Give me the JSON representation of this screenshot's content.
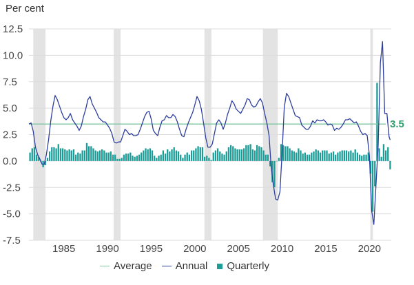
{
  "chart_data": {
    "type": "bar+line",
    "unit_label": "Per cent",
    "ylim": [
      -7.5,
      12.5
    ],
    "y_ticks": [
      "12.5",
      "10.0",
      "7.5",
      "5.0",
      "2.5",
      "0.0",
      "-2.5",
      "-5.0",
      "-7.5"
    ],
    "x_range": [
      1981.0,
      2022.5
    ],
    "x_ticks": [
      "1985",
      "1990",
      "1995",
      "2000",
      "2005",
      "2010",
      "2015",
      "2020"
    ],
    "grid": true,
    "recession_periods": [
      [
        1981.5,
        1982.9
      ],
      [
        1990.7,
        1991.5
      ],
      [
        2001.1,
        2001.9
      ],
      [
        2007.8,
        2009.5
      ],
      [
        2020.1,
        2020.4
      ]
    ],
    "average": {
      "name": "Average",
      "value": 3.5,
      "label": "3.5",
      "color": "#2e9f6b"
    },
    "annual": {
      "name": "Annual",
      "color": "#2d3e9e",
      "points": [
        [
          1981.0,
          3.5
        ],
        [
          1981.25,
          3.6
        ],
        [
          1981.5,
          2.8
        ],
        [
          1981.75,
          1.3
        ],
        [
          1982.0,
          0.6
        ],
        [
          1982.25,
          0.2
        ],
        [
          1982.5,
          -0.3
        ],
        [
          1982.75,
          -0.3
        ],
        [
          1983.0,
          0.6
        ],
        [
          1983.25,
          2.0
        ],
        [
          1983.5,
          3.8
        ],
        [
          1983.75,
          5.2
        ],
        [
          1984.0,
          6.2
        ],
        [
          1984.25,
          5.8
        ],
        [
          1984.5,
          5.2
        ],
        [
          1984.75,
          4.6
        ],
        [
          1985.0,
          4.1
        ],
        [
          1985.25,
          3.9
        ],
        [
          1985.5,
          4.1
        ],
        [
          1985.75,
          4.5
        ],
        [
          1986.0,
          3.9
        ],
        [
          1986.25,
          3.6
        ],
        [
          1986.5,
          3.3
        ],
        [
          1986.75,
          2.9
        ],
        [
          1987.0,
          3.3
        ],
        [
          1987.25,
          4.2
        ],
        [
          1987.5,
          4.9
        ],
        [
          1987.75,
          5.8
        ],
        [
          1988.0,
          6.1
        ],
        [
          1988.25,
          5.4
        ],
        [
          1988.5,
          5.0
        ],
        [
          1988.75,
          4.6
        ],
        [
          1989.0,
          4.1
        ],
        [
          1989.25,
          3.9
        ],
        [
          1989.5,
          3.7
        ],
        [
          1989.75,
          3.7
        ],
        [
          1990.0,
          3.4
        ],
        [
          1990.25,
          3.1
        ],
        [
          1990.5,
          2.6
        ],
        [
          1990.75,
          1.8
        ],
        [
          1991.0,
          1.7
        ],
        [
          1991.25,
          1.8
        ],
        [
          1991.5,
          1.8
        ],
        [
          1991.75,
          2.4
        ],
        [
          1992.0,
          3.0
        ],
        [
          1992.25,
          2.8
        ],
        [
          1992.5,
          2.5
        ],
        [
          1992.75,
          2.6
        ],
        [
          1993.0,
          2.4
        ],
        [
          1993.25,
          2.4
        ],
        [
          1993.5,
          2.5
        ],
        [
          1993.75,
          3.0
        ],
        [
          1994.0,
          3.6
        ],
        [
          1994.25,
          4.2
        ],
        [
          1994.5,
          4.6
        ],
        [
          1994.75,
          4.7
        ],
        [
          1995.0,
          4.0
        ],
        [
          1995.25,
          2.9
        ],
        [
          1995.5,
          2.6
        ],
        [
          1995.75,
          2.4
        ],
        [
          1996.0,
          3.2
        ],
        [
          1996.25,
          3.8
        ],
        [
          1996.5,
          3.9
        ],
        [
          1996.75,
          4.3
        ],
        [
          1997.0,
          4.1
        ],
        [
          1997.25,
          4.1
        ],
        [
          1997.5,
          4.4
        ],
        [
          1997.75,
          4.2
        ],
        [
          1998.0,
          3.7
        ],
        [
          1998.25,
          3.0
        ],
        [
          1998.5,
          2.4
        ],
        [
          1998.75,
          2.3
        ],
        [
          1999.0,
          3.0
        ],
        [
          1999.25,
          3.6
        ],
        [
          1999.5,
          4.1
        ],
        [
          1999.75,
          4.6
        ],
        [
          2000.0,
          5.3
        ],
        [
          2000.25,
          6.1
        ],
        [
          2000.5,
          5.7
        ],
        [
          2000.75,
          4.9
        ],
        [
          2001.0,
          3.6
        ],
        [
          2001.25,
          2.2
        ],
        [
          2001.5,
          1.3
        ],
        [
          2001.75,
          1.3
        ],
        [
          2002.0,
          1.6
        ],
        [
          2002.25,
          2.6
        ],
        [
          2002.5,
          3.6
        ],
        [
          2002.75,
          3.9
        ],
        [
          2003.0,
          3.6
        ],
        [
          2003.25,
          3.0
        ],
        [
          2003.5,
          3.6
        ],
        [
          2003.75,
          4.4
        ],
        [
          2004.0,
          5.0
        ],
        [
          2004.25,
          5.7
        ],
        [
          2004.5,
          5.4
        ],
        [
          2004.75,
          4.9
        ],
        [
          2005.0,
          4.7
        ],
        [
          2005.25,
          4.5
        ],
        [
          2005.5,
          4.9
        ],
        [
          2005.75,
          5.3
        ],
        [
          2006.0,
          5.9
        ],
        [
          2006.25,
          5.8
        ],
        [
          2006.5,
          5.3
        ],
        [
          2006.75,
          5.1
        ],
        [
          2007.0,
          5.2
        ],
        [
          2007.25,
          5.6
        ],
        [
          2007.5,
          5.9
        ],
        [
          2007.75,
          5.5
        ],
        [
          2008.0,
          4.5
        ],
        [
          2008.25,
          3.6
        ],
        [
          2008.5,
          2.4
        ],
        [
          2008.75,
          -0.6
        ],
        [
          2009.0,
          -2.3
        ],
        [
          2009.25,
          -3.6
        ],
        [
          2009.5,
          -3.7
        ],
        [
          2009.75,
          -2.9
        ],
        [
          2010.0,
          0.9
        ],
        [
          2010.25,
          5.1
        ],
        [
          2010.5,
          6.4
        ],
        [
          2010.75,
          6.1
        ],
        [
          2011.0,
          5.5
        ],
        [
          2011.25,
          4.9
        ],
        [
          2011.5,
          4.3
        ],
        [
          2011.75,
          4.2
        ],
        [
          2012.0,
          4.1
        ],
        [
          2012.25,
          3.4
        ],
        [
          2012.5,
          3.2
        ],
        [
          2012.75,
          3.0
        ],
        [
          2013.0,
          3.0
        ],
        [
          2013.25,
          3.3
        ],
        [
          2013.5,
          3.8
        ],
        [
          2013.75,
          3.6
        ],
        [
          2014.0,
          3.9
        ],
        [
          2014.25,
          3.8
        ],
        [
          2014.5,
          3.8
        ],
        [
          2014.75,
          3.9
        ],
        [
          2015.0,
          3.7
        ],
        [
          2015.25,
          3.4
        ],
        [
          2015.5,
          3.5
        ],
        [
          2015.75,
          3.4
        ],
        [
          2016.0,
          2.9
        ],
        [
          2016.25,
          3.1
        ],
        [
          2016.5,
          3.0
        ],
        [
          2016.75,
          3.2
        ],
        [
          2017.0,
          3.5
        ],
        [
          2017.25,
          3.9
        ],
        [
          2017.5,
          3.9
        ],
        [
          2017.75,
          4.0
        ],
        [
          2018.0,
          3.8
        ],
        [
          2018.25,
          3.6
        ],
        [
          2018.5,
          3.7
        ],
        [
          2018.75,
          3.3
        ],
        [
          2019.0,
          2.8
        ],
        [
          2019.25,
          2.5
        ],
        [
          2019.5,
          2.6
        ],
        [
          2019.75,
          2.4
        ],
        [
          2020.0,
          0.5
        ],
        [
          2020.25,
          -4.7
        ],
        [
          2020.5,
          -6.0
        ],
        [
          2020.75,
          -2.3
        ],
        [
          2021.0,
          1.5
        ],
        [
          2021.25,
          9.3
        ],
        [
          2021.5,
          11.3
        ],
        [
          2021.75,
          4.5
        ],
        [
          2022.0,
          4.5
        ],
        [
          2022.25,
          2.3
        ],
        [
          2022.375,
          2.0
        ]
      ]
    },
    "quarterly": {
      "name": "Quarterly",
      "color": "#1c9c97",
      "quarter_width": 0.25,
      "points": [
        [
          1981.0,
          0.8
        ],
        [
          1981.25,
          1.2
        ],
        [
          1981.5,
          1.3
        ],
        [
          1981.75,
          0.6
        ],
        [
          1982.0,
          0.4
        ],
        [
          1982.25,
          -0.1
        ],
        [
          1982.5,
          -0.6
        ],
        [
          1982.75,
          -0.4
        ],
        [
          1983.0,
          0.3
        ],
        [
          1983.25,
          0.9
        ],
        [
          1983.5,
          1.3
        ],
        [
          1983.75,
          1.3
        ],
        [
          1984.0,
          1.2
        ],
        [
          1984.25,
          1.6
        ],
        [
          1984.5,
          1.2
        ],
        [
          1984.75,
          1.2
        ],
        [
          1985.0,
          1.1
        ],
        [
          1985.25,
          1.0
        ],
        [
          1985.5,
          1.1
        ],
        [
          1985.75,
          1.0
        ],
        [
          1986.0,
          1.1
        ],
        [
          1986.25,
          0.6
        ],
        [
          1986.5,
          0.8
        ],
        [
          1986.75,
          0.7
        ],
        [
          1987.0,
          1.0
        ],
        [
          1987.25,
          1.0
        ],
        [
          1987.5,
          1.7
        ],
        [
          1987.75,
          1.4
        ],
        [
          1988.0,
          1.4
        ],
        [
          1988.25,
          1.2
        ],
        [
          1988.5,
          1.0
        ],
        [
          1988.75,
          0.9
        ],
        [
          1989.0,
          1.0
        ],
        [
          1989.25,
          1.1
        ],
        [
          1989.5,
          1.0
        ],
        [
          1989.75,
          0.8
        ],
        [
          1990.0,
          0.8
        ],
        [
          1990.25,
          0.9
        ],
        [
          1990.5,
          0.6
        ],
        [
          1990.75,
          0.6
        ],
        [
          1991.0,
          0.2
        ],
        [
          1991.25,
          0.2
        ],
        [
          1991.5,
          0.3
        ],
        [
          1991.75,
          0.6
        ],
        [
          1992.0,
          0.7
        ],
        [
          1992.25,
          0.7
        ],
        [
          1992.5,
          0.8
        ],
        [
          1992.75,
          0.5
        ],
        [
          1993.0,
          0.4
        ],
        [
          1993.25,
          0.5
        ],
        [
          1993.5,
          0.6
        ],
        [
          1993.75,
          0.8
        ],
        [
          1994.0,
          1.0
        ],
        [
          1994.25,
          1.2
        ],
        [
          1994.5,
          1.1
        ],
        [
          1994.75,
          1.2
        ],
        [
          1995.0,
          1.0
        ],
        [
          1995.25,
          0.5
        ],
        [
          1995.5,
          0.3
        ],
        [
          1995.75,
          0.5
        ],
        [
          1996.0,
          0.6
        ],
        [
          1996.25,
          1.0
        ],
        [
          1996.5,
          0.7
        ],
        [
          1996.75,
          1.1
        ],
        [
          1997.0,
          0.9
        ],
        [
          1997.25,
          1.1
        ],
        [
          1997.5,
          1.3
        ],
        [
          1997.75,
          1.0
        ],
        [
          1998.0,
          0.9
        ],
        [
          1998.25,
          0.6
        ],
        [
          1998.5,
          0.3
        ],
        [
          1998.75,
          0.6
        ],
        [
          1999.0,
          0.8
        ],
        [
          1999.25,
          0.6
        ],
        [
          1999.5,
          1.0
        ],
        [
          1999.75,
          1.0
        ],
        [
          2000.0,
          1.2
        ],
        [
          2000.25,
          1.4
        ],
        [
          2000.5,
          1.3
        ],
        [
          2000.75,
          1.3
        ],
        [
          2001.0,
          0.4
        ],
        [
          2001.25,
          0.5
        ],
        [
          2001.5,
          0.3
        ],
        [
          2001.75,
          0.1
        ],
        [
          2002.0,
          0.8
        ],
        [
          2002.25,
          1.0
        ],
        [
          2002.5,
          1.2
        ],
        [
          2002.75,
          0.9
        ],
        [
          2003.0,
          0.7
        ],
        [
          2003.25,
          0.6
        ],
        [
          2003.5,
          0.9
        ],
        [
          2003.75,
          1.3
        ],
        [
          2004.0,
          1.5
        ],
        [
          2004.25,
          1.4
        ],
        [
          2004.5,
          1.2
        ],
        [
          2004.75,
          1.1
        ],
        [
          2005.0,
          1.1
        ],
        [
          2005.25,
          1.1
        ],
        [
          2005.5,
          1.2
        ],
        [
          2005.75,
          1.5
        ],
        [
          2006.0,
          1.5
        ],
        [
          2006.25,
          1.6
        ],
        [
          2006.5,
          1.1
        ],
        [
          2006.75,
          1.0
        ],
        [
          2007.0,
          1.5
        ],
        [
          2007.25,
          1.4
        ],
        [
          2007.5,
          1.3
        ],
        [
          2007.75,
          1.0
        ],
        [
          2008.0,
          0.6
        ],
        [
          2008.25,
          0.6
        ],
        [
          2008.5,
          -0.5
        ],
        [
          2008.75,
          -2.0
        ],
        [
          2009.0,
          -2.5
        ],
        [
          2009.25,
          0.0
        ],
        [
          2009.5,
          0.3
        ],
        [
          2009.75,
          1.6
        ],
        [
          2010.0,
          1.5
        ],
        [
          2010.25,
          1.4
        ],
        [
          2010.5,
          1.4
        ],
        [
          2010.75,
          1.2
        ],
        [
          2011.0,
          1.0
        ],
        [
          2011.25,
          0.9
        ],
        [
          2011.5,
          0.8
        ],
        [
          2011.75,
          1.2
        ],
        [
          2012.0,
          1.0
        ],
        [
          2012.25,
          0.7
        ],
        [
          2012.5,
          0.8
        ],
        [
          2012.75,
          0.6
        ],
        [
          2013.0,
          0.6
        ],
        [
          2013.25,
          0.8
        ],
        [
          2013.5,
          0.9
        ],
        [
          2013.75,
          1.1
        ],
        [
          2014.0,
          1.0
        ],
        [
          2014.25,
          0.8
        ],
        [
          2014.5,
          1.0
        ],
        [
          2014.75,
          1.0
        ],
        [
          2015.0,
          1.0
        ],
        [
          2015.25,
          0.7
        ],
        [
          2015.5,
          0.8
        ],
        [
          2015.75,
          0.9
        ],
        [
          2016.0,
          0.6
        ],
        [
          2016.25,
          0.8
        ],
        [
          2016.5,
          0.9
        ],
        [
          2016.75,
          1.0
        ],
        [
          2017.0,
          1.0
        ],
        [
          2017.25,
          1.0
        ],
        [
          2017.5,
          0.9
        ],
        [
          2017.75,
          1.0
        ],
        [
          2018.0,
          0.8
        ],
        [
          2018.25,
          1.1
        ],
        [
          2018.5,
          0.8
        ],
        [
          2018.75,
          0.6
        ],
        [
          2019.0,
          0.5
        ],
        [
          2019.25,
          0.6
        ],
        [
          2019.5,
          0.6
        ],
        [
          2019.75,
          0.8
        ],
        [
          2020.0,
          -1.2
        ],
        [
          2020.25,
          -4.8
        ],
        [
          2020.5,
          -2.4
        ],
        [
          2020.75,
          7.4
        ],
        [
          2021.0,
          1.2
        ],
        [
          2021.25,
          0.4
        ],
        [
          2021.5,
          1.6
        ],
        [
          2021.75,
          1.0
        ],
        [
          2022.0,
          1.3
        ],
        [
          2022.25,
          -0.8
        ]
      ]
    },
    "legend": [
      "Average",
      "Annual",
      "Quarterly"
    ],
    "legend_position": "bottom"
  }
}
